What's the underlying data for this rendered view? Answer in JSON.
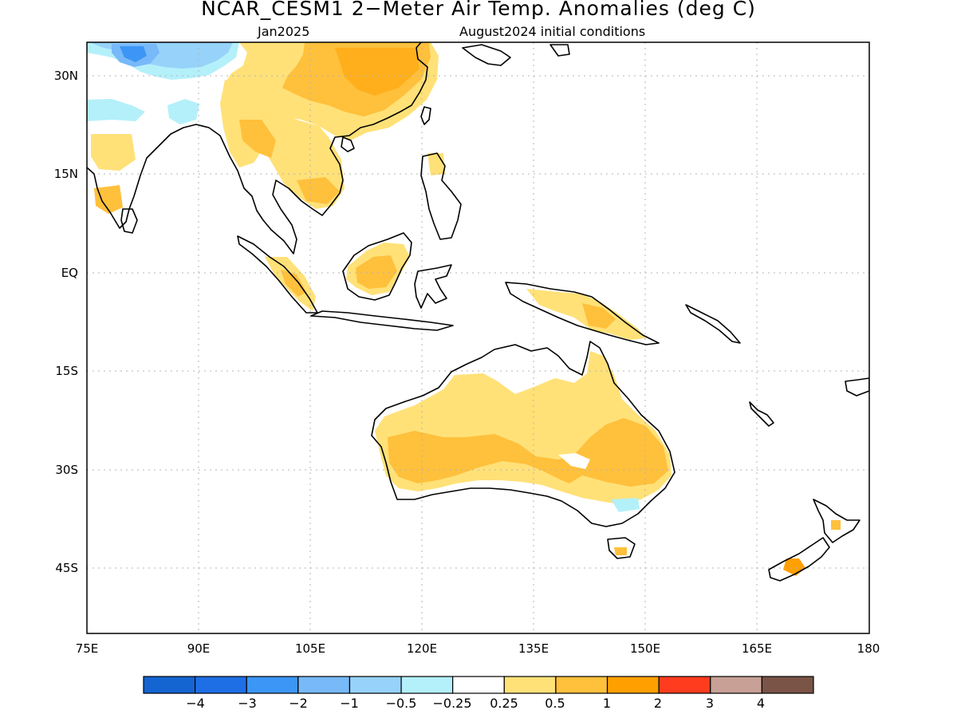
{
  "title": "NCAR_CESM1 2−Meter Air Temp. Anomalies (deg C)",
  "subtitle_left": "Jan2025",
  "subtitle_right": "August2024 initial conditions",
  "lat_labels": [
    "30N",
    "15N",
    "EQ",
    "15S",
    "30S",
    "45S"
  ],
  "lon_labels": [
    "75E",
    "90E",
    "105E",
    "120E",
    "135E",
    "150E",
    "165E",
    "180"
  ],
  "colorbar": {
    "colors": [
      "#1464d2",
      "#1e6ee6",
      "#3c96f5",
      "#78b9fa",
      "#96d2fa",
      "#b4f0fa",
      "#ffffff",
      "#ffe178",
      "#ffc03c",
      "#ffa000",
      "#ff3c1e",
      "#c8a096",
      "#7a5446"
    ],
    "labels": [
      "−4",
      "−3",
      "−2",
      "−1",
      "−0.5",
      "−0.25",
      "0.25",
      "0.5",
      "1",
      "2",
      "3",
      "4"
    ]
  },
  "map": {
    "domain": {
      "lon": [
        75,
        180
      ],
      "lat": [
        -48,
        35
      ]
    },
    "coastline_color": "#000000"
  }
}
